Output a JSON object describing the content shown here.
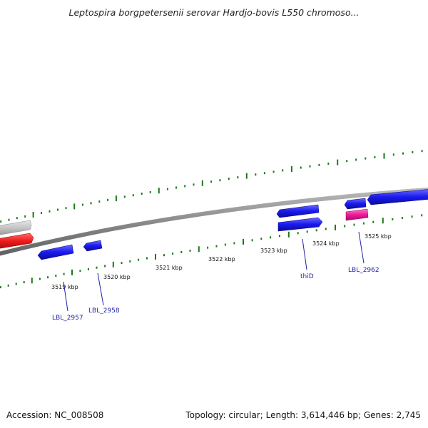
{
  "title": "Leptospira borgpetersenii serovar Hardjo-bovis L550 chromoso...",
  "footer": {
    "accession": "Accession: NC_008508",
    "topology": "Topology: circular; Length: 3,614,446 bp; Genes: 2,745"
  },
  "scale_labels": [
    {
      "text": "3519 kbp",
      "pos": 3519.0
    },
    {
      "text": "3520 kbp",
      "pos": 3520.0
    },
    {
      "text": "3521 kbp",
      "pos": 3521.0
    },
    {
      "text": "3522 kbp",
      "pos": 3522.0
    },
    {
      "text": "3523 kbp",
      "pos": 3523.0
    },
    {
      "text": "3524 kbp",
      "pos": 3524.0
    },
    {
      "text": "3525 kbp",
      "pos": 3525.0
    }
  ],
  "gene_labels": [
    {
      "text": "LBL_2957",
      "color": "#2222aa"
    },
    {
      "text": "LBL_2958",
      "color": "#2222aa"
    },
    {
      "text": "thiD",
      "color": "#2222aa"
    },
    {
      "text": "LBL_2962",
      "color": "#2222aa"
    }
  ],
  "colors": {
    "backbone": "#8a8a8a",
    "tick": "#1a7a1a",
    "forward_gene": "#1a1aee",
    "reverse_gene": "#1a1aee",
    "rRNA_gene": "#ee1a1a",
    "pseudo_gene": "#bbbbbb",
    "misc_gene": "#ee1a99"
  }
}
